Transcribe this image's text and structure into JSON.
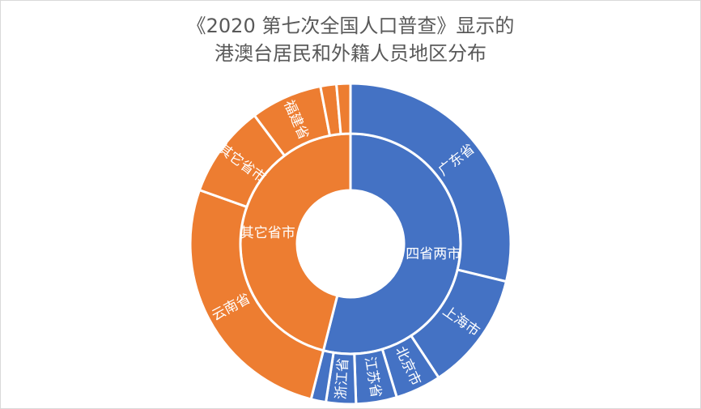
{
  "chart_data": {
    "type": "sunburst",
    "title_lines": [
      "《2020 第七次全国人口普查》显示的",
      "港澳台居民和外籍人员地区分布"
    ],
    "unit": "percent of total",
    "groups": [
      {
        "name": "四省两市",
        "color": "#4472C4",
        "children": [
          {
            "name": "广东省",
            "value": 28.7
          },
          {
            "name": "上海市",
            "value": 11.9
          },
          {
            "name": "北京市",
            "value": 4.6
          },
          {
            "name": "江苏省",
            "value": 4.1
          },
          {
            "name": "浙江省",
            "value": 3.0
          },
          {
            "name": "",
            "value": 1.5
          }
        ]
      },
      {
        "name": "其它省市",
        "color": "#ED7D31",
        "children": [
          {
            "name": "云南省",
            "value": 26.4
          },
          {
            "name": "其它省市",
            "value": 9.3
          },
          {
            "name": "福建省",
            "value": 7.2
          },
          {
            "name": "",
            "value": 1.6
          },
          {
            "name": "",
            "value": 1.4
          }
        ]
      }
    ]
  }
}
